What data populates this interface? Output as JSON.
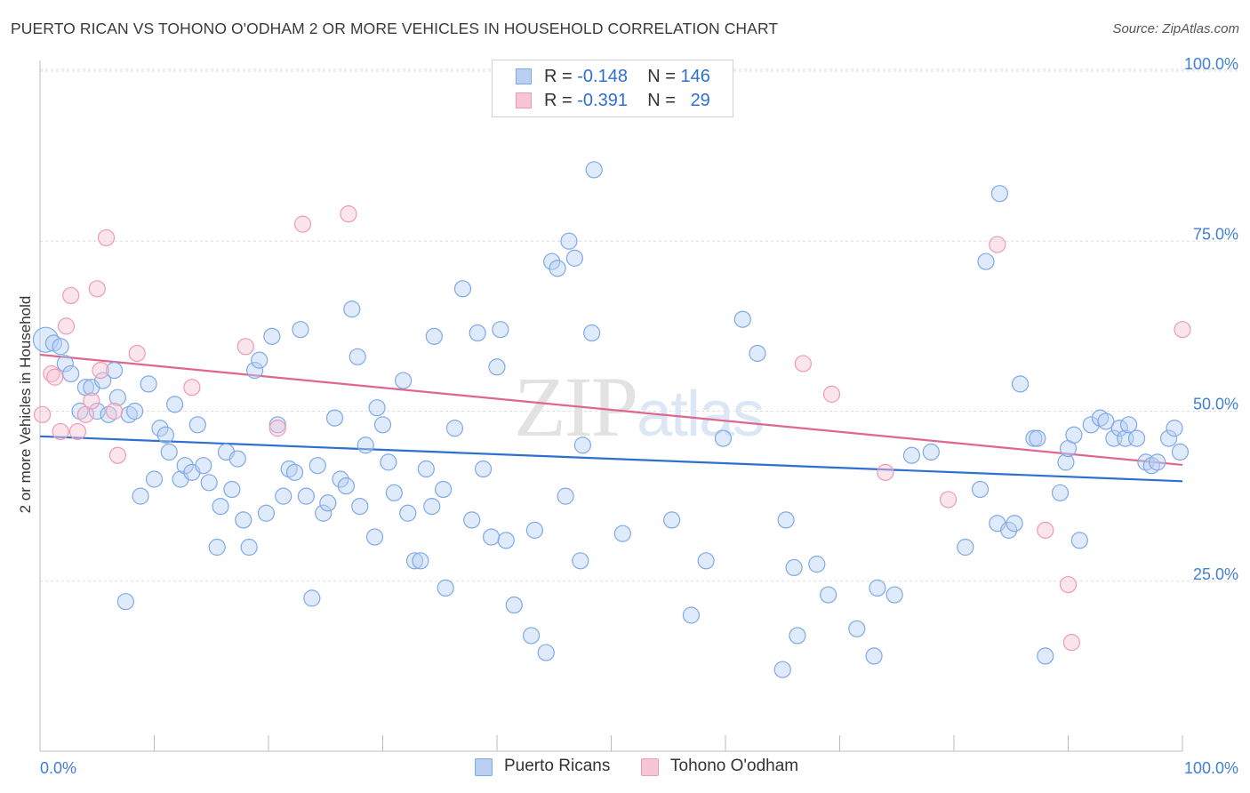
{
  "title": "PUERTO RICAN VS TOHONO O'ODHAM 2 OR MORE VEHICLES IN HOUSEHOLD CORRELATION CHART",
  "source": "Source: ZipAtlas.com",
  "watermark": "ZIPatlas",
  "legend": {
    "r_label": "R =",
    "n_label": "N =",
    "series": [
      {
        "name": "Puerto Ricans",
        "r": "-0.148",
        "n": "146",
        "color": "#7fa9e8",
        "fill": "#b9d0f3",
        "line": "#2f6fd0"
      },
      {
        "name": "Tohono O'odham",
        "r": "-0.391",
        "n": "29",
        "color": "#ef9ab4",
        "fill": "#f7c6d5",
        "line": "#e0668f"
      }
    ]
  },
  "chart_data": {
    "type": "scatter",
    "ylabel": "2 or more Vehicles in Household",
    "xlabel": "",
    "xlim": [
      0,
      100
    ],
    "ylim": [
      0,
      100
    ],
    "x_tick_labels": [
      "0.0%",
      "100.0%"
    ],
    "y_tick_labels": [
      "25.0%",
      "50.0%",
      "75.0%",
      "100.0%"
    ],
    "y_ticks": [
      25,
      50,
      75,
      100
    ],
    "series": [
      {
        "name": "Puerto Ricans",
        "trend": [
          [
            0,
            46.3
          ],
          [
            100,
            39.7
          ]
        ],
        "points": [
          [
            0.5,
            60.5
          ],
          [
            1.2,
            60.0
          ],
          [
            1.8,
            59.5
          ],
          [
            2.2,
            57.0
          ],
          [
            2.7,
            55.5
          ],
          [
            3.5,
            50.0
          ],
          [
            4.0,
            53.5
          ],
          [
            4.5,
            53.5
          ],
          [
            5.0,
            50.0
          ],
          [
            5.5,
            54.5
          ],
          [
            6.0,
            49.5
          ],
          [
            6.5,
            56.0
          ],
          [
            6.8,
            52.0
          ],
          [
            7.5,
            22.0
          ],
          [
            7.8,
            49.5
          ],
          [
            8.3,
            50.0
          ],
          [
            8.8,
            37.5
          ],
          [
            9.5,
            54.0
          ],
          [
            10.0,
            40.0
          ],
          [
            10.5,
            47.5
          ],
          [
            11.0,
            46.5
          ],
          [
            11.3,
            44.0
          ],
          [
            11.8,
            51.0
          ],
          [
            12.3,
            40.0
          ],
          [
            12.7,
            42.0
          ],
          [
            13.3,
            41.0
          ],
          [
            13.8,
            48.0
          ],
          [
            14.3,
            42.0
          ],
          [
            14.8,
            39.5
          ],
          [
            15.5,
            30.0
          ],
          [
            15.8,
            36.0
          ],
          [
            16.3,
            44.0
          ],
          [
            16.8,
            38.5
          ],
          [
            17.3,
            43.0
          ],
          [
            17.8,
            34.0
          ],
          [
            18.3,
            30.0
          ],
          [
            18.8,
            56.0
          ],
          [
            19.2,
            57.5
          ],
          [
            19.8,
            35.0
          ],
          [
            20.3,
            61.0
          ],
          [
            20.8,
            48.0
          ],
          [
            21.3,
            37.5
          ],
          [
            21.8,
            41.5
          ],
          [
            22.3,
            41.0
          ],
          [
            22.8,
            62.0
          ],
          [
            23.3,
            37.5
          ],
          [
            23.8,
            22.5
          ],
          [
            24.3,
            42.0
          ],
          [
            24.8,
            35.0
          ],
          [
            25.2,
            36.5
          ],
          [
            25.8,
            49.0
          ],
          [
            26.3,
            40.0
          ],
          [
            26.8,
            39.0
          ],
          [
            27.3,
            65.0
          ],
          [
            27.8,
            58.0
          ],
          [
            28.0,
            36.0
          ],
          [
            28.5,
            45.0
          ],
          [
            29.3,
            31.5
          ],
          [
            29.5,
            50.5
          ],
          [
            30.0,
            48.0
          ],
          [
            30.5,
            42.5
          ],
          [
            31.0,
            38.0
          ],
          [
            31.8,
            54.5
          ],
          [
            32.2,
            35.0
          ],
          [
            32.8,
            28.0
          ],
          [
            33.3,
            28.0
          ],
          [
            33.8,
            41.5
          ],
          [
            34.3,
            36.0
          ],
          [
            34.5,
            61.0
          ],
          [
            35.3,
            38.5
          ],
          [
            35.5,
            24.0
          ],
          [
            36.3,
            47.5
          ],
          [
            37.0,
            68.0
          ],
          [
            37.8,
            34.0
          ],
          [
            38.3,
            61.5
          ],
          [
            38.8,
            41.5
          ],
          [
            39.5,
            31.5
          ],
          [
            40.0,
            56.5
          ],
          [
            40.3,
            62.0
          ],
          [
            40.8,
            31.0
          ],
          [
            41.5,
            21.5
          ],
          [
            43.0,
            17.0
          ],
          [
            43.3,
            32.5
          ],
          [
            44.3,
            14.5
          ],
          [
            44.8,
            72.0
          ],
          [
            45.3,
            71.0
          ],
          [
            46.0,
            37.5
          ],
          [
            46.3,
            75.0
          ],
          [
            46.8,
            72.5
          ],
          [
            47.3,
            28.0
          ],
          [
            47.5,
            45.0
          ],
          [
            48.3,
            61.5
          ],
          [
            48.5,
            85.5
          ],
          [
            51.0,
            32.0
          ],
          [
            55.3,
            34.0
          ],
          [
            57.0,
            20.0
          ],
          [
            58.3,
            28.0
          ],
          [
            59.8,
            46.0
          ],
          [
            61.5,
            63.5
          ],
          [
            62.8,
            58.5
          ],
          [
            65.0,
            12.0
          ],
          [
            65.3,
            34.0
          ],
          [
            66.0,
            27.0
          ],
          [
            66.3,
            17.0
          ],
          [
            68.0,
            27.5
          ],
          [
            69.0,
            23.0
          ],
          [
            71.5,
            18.0
          ],
          [
            73.0,
            14.0
          ],
          [
            73.3,
            24.0
          ],
          [
            74.8,
            23.0
          ],
          [
            76.3,
            43.5
          ],
          [
            78.0,
            44.0
          ],
          [
            81.0,
            30.0
          ],
          [
            82.3,
            38.5
          ],
          [
            82.8,
            72.0
          ],
          [
            83.8,
            33.5
          ],
          [
            84.0,
            82.0
          ],
          [
            84.8,
            32.5
          ],
          [
            85.3,
            33.5
          ],
          [
            85.8,
            54.0
          ],
          [
            87.0,
            46.0
          ],
          [
            87.3,
            46.0
          ],
          [
            88.0,
            14.0
          ],
          [
            89.3,
            38.0
          ],
          [
            89.8,
            42.5
          ],
          [
            90.0,
            44.5
          ],
          [
            90.5,
            46.5
          ],
          [
            91.0,
            31.0
          ],
          [
            92.0,
            48.0
          ],
          [
            92.8,
            49.0
          ],
          [
            93.3,
            48.5
          ],
          [
            94.0,
            46.0
          ],
          [
            94.5,
            47.5
          ],
          [
            95.0,
            46.0
          ],
          [
            95.3,
            48.0
          ],
          [
            96.0,
            46.0
          ],
          [
            96.8,
            42.5
          ],
          [
            97.3,
            42.0
          ],
          [
            97.8,
            42.5
          ],
          [
            98.8,
            46.0
          ],
          [
            99.3,
            47.5
          ],
          [
            99.8,
            44.0
          ]
        ]
      },
      {
        "name": "Tohono O'odham",
        "trend": [
          [
            0,
            58.3
          ],
          [
            100,
            42.1
          ]
        ],
        "points": [
          [
            0.2,
            49.5
          ],
          [
            1.0,
            55.5
          ],
          [
            1.3,
            55.0
          ],
          [
            1.8,
            47.0
          ],
          [
            2.3,
            62.5
          ],
          [
            2.7,
            67.0
          ],
          [
            3.3,
            47.0
          ],
          [
            4.0,
            49.5
          ],
          [
            4.5,
            51.5
          ],
          [
            5.0,
            68.0
          ],
          [
            5.3,
            56.0
          ],
          [
            5.8,
            75.5
          ],
          [
            6.5,
            50.0
          ],
          [
            6.8,
            43.5
          ],
          [
            8.5,
            58.5
          ],
          [
            13.3,
            53.5
          ],
          [
            18.0,
            59.5
          ],
          [
            20.8,
            47.5
          ],
          [
            23.0,
            77.5
          ],
          [
            27.0,
            79.0
          ],
          [
            66.8,
            57.0
          ],
          [
            69.3,
            52.5
          ],
          [
            74.0,
            41.0
          ],
          [
            79.5,
            37.0
          ],
          [
            83.8,
            74.5
          ],
          [
            88.0,
            32.5
          ],
          [
            90.0,
            24.5
          ],
          [
            90.3,
            16.0
          ],
          [
            100.0,
            62.0
          ]
        ]
      }
    ]
  }
}
